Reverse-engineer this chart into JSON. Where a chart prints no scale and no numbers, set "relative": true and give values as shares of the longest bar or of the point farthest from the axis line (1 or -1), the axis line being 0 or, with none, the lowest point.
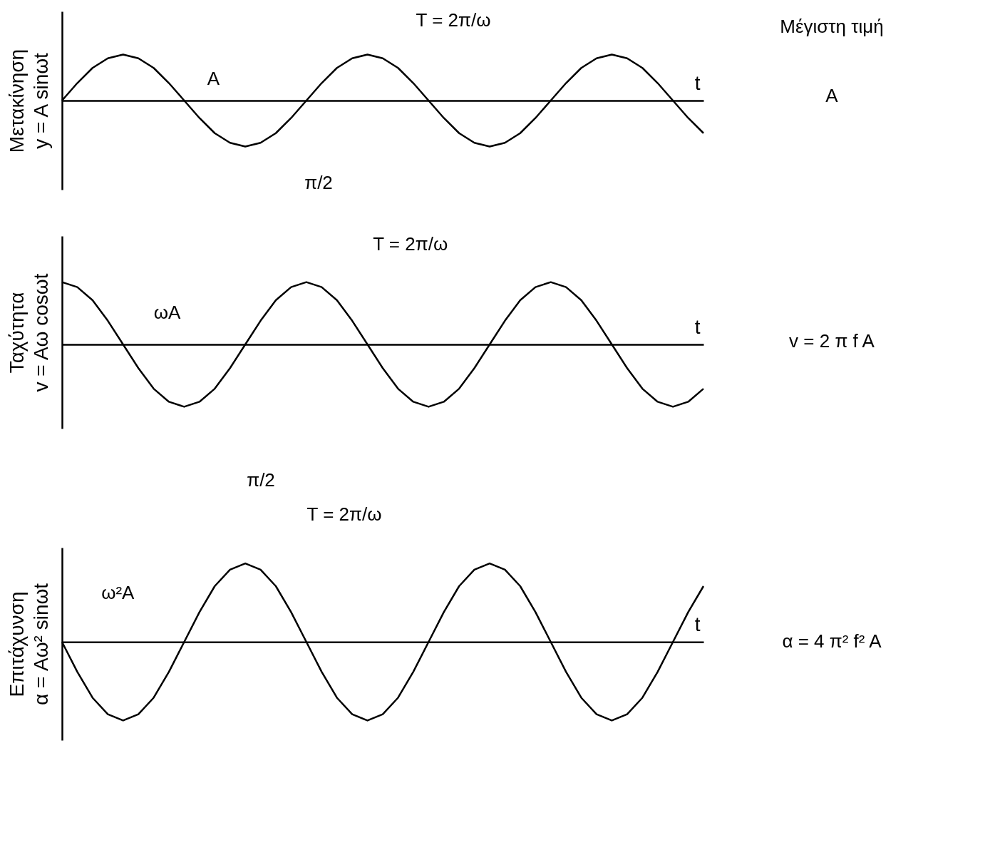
{
  "chart_data": [
    {
      "type": "line",
      "relative": true,
      "ylabel": "Μετακίνηση\ny = A sinωt",
      "xlabel": "t",
      "categories": [
        null,
        null,
        null,
        null,
        null,
        null,
        null,
        null,
        null,
        null,
        null,
        null,
        null,
        null,
        null,
        null,
        null,
        null,
        null,
        null,
        null,
        null,
        null,
        null,
        null,
        null,
        null,
        null,
        null,
        null,
        null,
        null,
        null,
        null,
        null,
        null,
        null,
        null,
        null,
        null,
        null,
        null,
        null
      ],
      "series": [
        {
          "color": "#000000",
          "values": [
            0,
            0.38,
            0.71,
            0.92,
            1,
            0.92,
            0.71,
            0.38,
            0,
            -0.38,
            -0.71,
            -0.92,
            -1,
            -0.92,
            -0.71,
            -0.38,
            0,
            0.38,
            0.71,
            0.92,
            1,
            0.92,
            0.71,
            0.38,
            0,
            -0.38,
            -0.71,
            -0.92,
            -1,
            -0.92,
            -0.71,
            -0.38,
            0,
            0.38,
            0.71,
            0.92,
            1,
            0.92,
            0.71,
            0.38,
            0,
            -0.38,
            -0.71
          ]
        }
      ],
      "annotations": [
        "A",
        "T = 2π/ω",
        "π/2",
        "Μέγιστη τιμή",
        "A"
      ]
    },
    {
      "type": "line",
      "relative": true,
      "ylabel": "Ταχύτητα\nv = Aω cosωt",
      "xlabel": "t",
      "categories": [
        null,
        null,
        null,
        null,
        null,
        null,
        null,
        null,
        null,
        null,
        null,
        null,
        null,
        null,
        null,
        null,
        null,
        null,
        null,
        null,
        null,
        null,
        null,
        null,
        null,
        null,
        null,
        null,
        null,
        null,
        null,
        null,
        null,
        null,
        null,
        null,
        null,
        null,
        null,
        null,
        null,
        null,
        null
      ],
      "series": [
        {
          "color": "#000000",
          "values": [
            1,
            0.92,
            0.71,
            0.38,
            0,
            -0.38,
            -0.71,
            -0.92,
            -1,
            -0.92,
            -0.71,
            -0.38,
            0,
            0.38,
            0.71,
            0.92,
            1,
            0.92,
            0.71,
            0.38,
            0,
            -0.38,
            -0.71,
            -0.92,
            -1,
            -0.92,
            -0.71,
            -0.38,
            0,
            0.38,
            0.71,
            0.92,
            1,
            0.92,
            0.71,
            0.38,
            0,
            -0.38,
            -0.71,
            -0.92,
            -1,
            -0.92,
            -0.71
          ]
        }
      ],
      "annotations": [
        "ωA",
        "T = 2π/ω",
        "v = 2 π f A"
      ]
    },
    {
      "type": "line",
      "relative": true,
      "ylabel": "Επιτάχυνση\nα = Aω² sinωt",
      "xlabel": "t",
      "categories": [
        null,
        null,
        null,
        null,
        null,
        null,
        null,
        null,
        null,
        null,
        null,
        null,
        null,
        null,
        null,
        null,
        null,
        null,
        null,
        null,
        null,
        null,
        null,
        null,
        null,
        null,
        null,
        null,
        null,
        null,
        null,
        null,
        null,
        null,
        null,
        null,
        null,
        null,
        null,
        null,
        null,
        null,
        null
      ],
      "series": [
        {
          "color": "#000000",
          "values": [
            0,
            -0.38,
            -0.71,
            -0.92,
            -1,
            -0.92,
            -0.71,
            -0.38,
            0,
            0.38,
            0.71,
            0.92,
            1,
            0.92,
            0.71,
            0.38,
            0,
            -0.38,
            -0.71,
            -0.92,
            -1,
            -0.92,
            -0.71,
            -0.38,
            0,
            0.38,
            0.71,
            0.92,
            1,
            0.92,
            0.71,
            0.38,
            0,
            -0.38,
            -0.71,
            -0.92,
            -1,
            -0.92,
            -0.71,
            -0.38,
            0,
            0.38,
            0.71
          ]
        }
      ],
      "annotations": [
        "ω²A",
        "T = 2π/ω",
        "π/2",
        "α = 4 π² f² A"
      ]
    }
  ]
}
